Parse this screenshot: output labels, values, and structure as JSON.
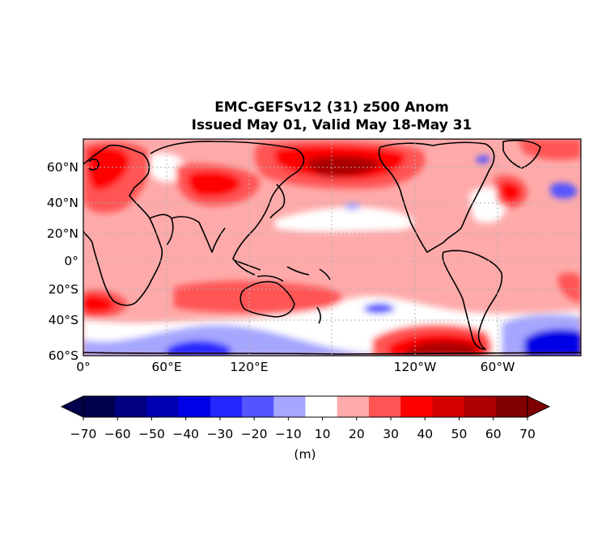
{
  "title": {
    "line1": "EMC-GEFSv12 (31) z500 Anom",
    "line2": "Issued May 01, Valid May 18-May 31"
  },
  "map": {
    "lat_ticks": [
      "60°N",
      "40°N",
      "20°N",
      "0°",
      "20°S",
      "40°S",
      "60°S"
    ],
    "lon_ticks": [
      "0°",
      "60°E",
      "120°E",
      "120°W",
      "60°W"
    ],
    "gridlines": "dotted"
  },
  "colorbar": {
    "levels": [
      -70,
      -60,
      -50,
      -40,
      -30,
      -20,
      -10,
      10,
      20,
      30,
      40,
      50,
      60,
      70
    ],
    "tick_labels": [
      "−70",
      "−60",
      "−50",
      "−40",
      "−30",
      "−20",
      "−10",
      "10",
      "20",
      "30",
      "40",
      "50",
      "60",
      "70"
    ],
    "colors": [
      "#00004c",
      "#000080",
      "#0000b3",
      "#0000e6",
      "#2626ff",
      "#5555ff",
      "#a6a6ff",
      "#ffffff",
      "#ffaaaa",
      "#ff5555",
      "#ff0000",
      "#d40000",
      "#aa0000",
      "#800000"
    ],
    "extend_low": "#00004c",
    "extend_high": "#800000",
    "unit": "(m)"
  },
  "colors": {
    "text": "#000000",
    "grid": "#b0b0b0",
    "coast": "#000000"
  }
}
